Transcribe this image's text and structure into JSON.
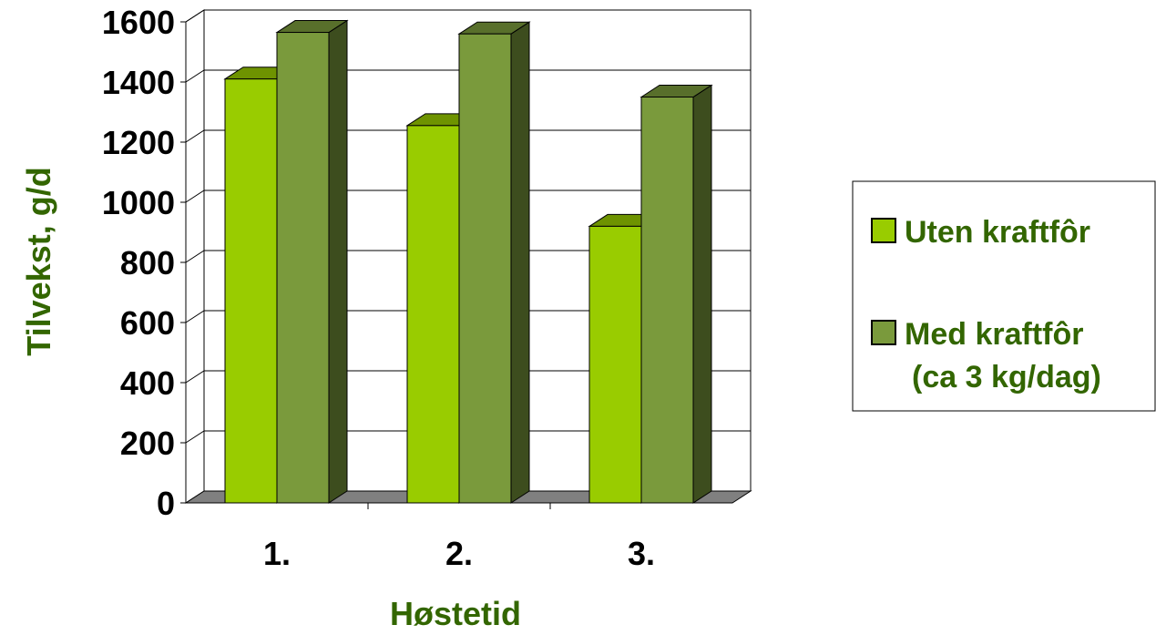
{
  "chart_data": {
    "type": "bar",
    "style": "3d-clustered-column",
    "categories": [
      "1.",
      "2.",
      "3."
    ],
    "series": [
      {
        "name": "Uten kraftfôr",
        "values": [
          1410,
          1255,
          920
        ],
        "color": "#99cc00"
      },
      {
        "name": "Med kraftfôr (ca 3 kg/dag)",
        "name_lines": [
          "Med kraftfôr",
          "(ca 3 kg/dag)"
        ],
        "values": [
          1565,
          1560,
          1350
        ],
        "color": "#7a9a3c"
      }
    ],
    "yticks": [
      0,
      200,
      400,
      600,
      800,
      1000,
      1200,
      1400,
      1600
    ],
    "ylim": [
      0,
      1600
    ],
    "ylabel": "Tilvekst, g/d",
    "xlabel": "Høstetid",
    "grid": true,
    "legend": "right",
    "colors": {
      "text": "#000000",
      "axis_title": "#336600",
      "floor": "#808080",
      "grid": "#000000"
    }
  }
}
